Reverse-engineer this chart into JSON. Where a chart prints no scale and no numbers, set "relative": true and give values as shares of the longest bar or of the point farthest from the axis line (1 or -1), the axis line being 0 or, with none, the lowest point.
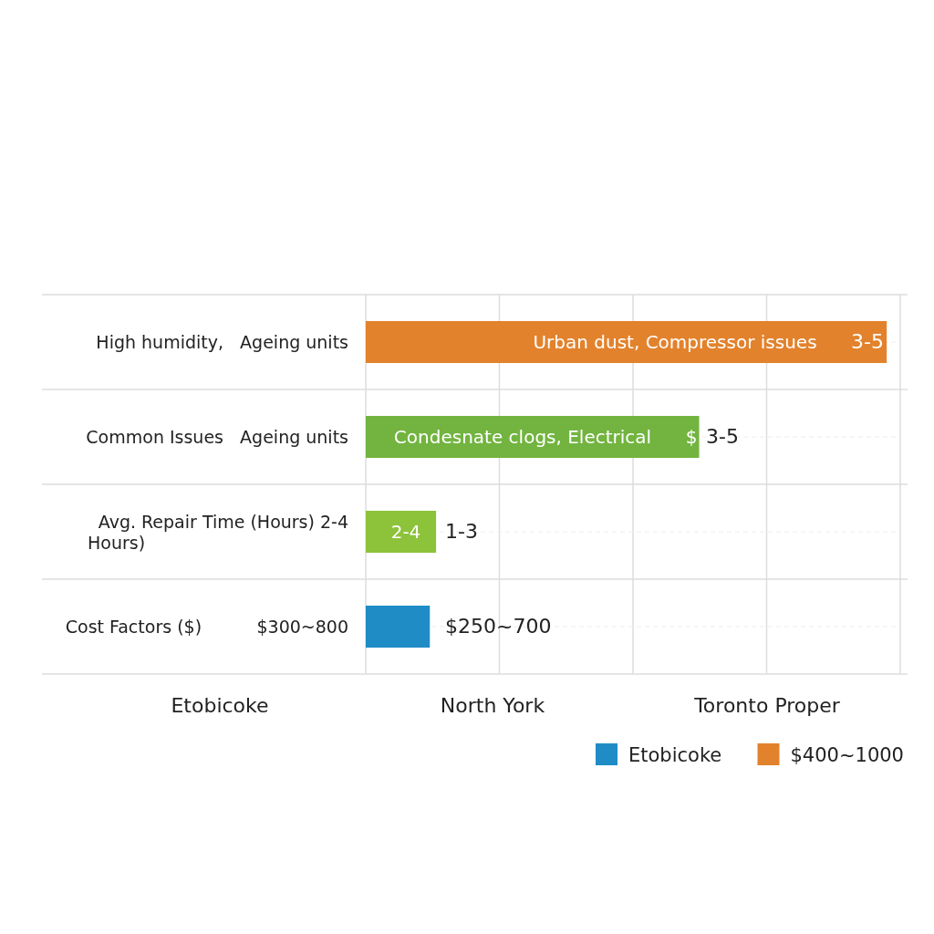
{
  "chart_data": {
    "type": "bar",
    "orientation": "horizontal",
    "relative": true,
    "grid": true,
    "legend": "bottom right",
    "categories": [
      "High humidity,   Ageing units",
      "Common Issues   Ageing units",
      "Avg. Repair Time (Hours) 2-4\nHours)",
      "Cost Factors ($)          $300~800"
    ],
    "series": [
      {
        "name": "$400~1000",
        "color": "#e3822c",
        "values": [
          1,
          null,
          null,
          null
        ]
      },
      {
        "color": "#72b43f",
        "values": [
          null,
          0.64,
          null,
          null
        ]
      },
      {
        "color": "#8dc23b",
        "values": [
          null,
          null,
          0.135,
          null
        ]
      },
      {
        "name": "Etobicoke",
        "color": "#1f8cc6",
        "values": [
          null,
          null,
          null,
          0.123
        ]
      }
    ],
    "annotations": [
      "Urban dust, Compressor issues",
      "Condesnate clogs, Electrical",
      "$",
      "2-4",
      "Etobicoke",
      "North York",
      "Toronto Proper",
      "3-5",
      "3-5",
      "1-3",
      "$250~700"
    ]
  }
}
